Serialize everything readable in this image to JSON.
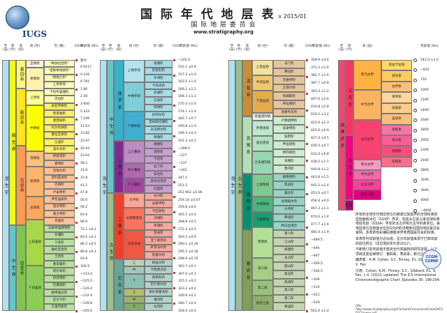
{
  "header": {
    "logo_text": "IUGS",
    "title": "国 际 年 代 地 层 表",
    "version": "v 2015/01",
    "subtitle": "国 际 地 层 委 员 会",
    "url": "www.stratigraphy.org"
  },
  "column_headers": {
    "eonothem": "宇 (宙)",
    "erathem": "界 (代)",
    "system": "系 (纪)",
    "series": "统 (世)",
    "stage": "阶 (期)",
    "gssp": "GSSP",
    "age": "年龄值 (Ma)"
  },
  "panel1": {
    "eon": "显 生 宇",
    "eras": [
      "新 生 界",
      "中 生 界"
    ],
    "systems": [
      "第四系",
      "新近系",
      "古近系",
      "白垩系"
    ],
    "series": [
      "全新统",
      "更新统",
      "上新统",
      "中新统",
      "渐新统",
      "始新统",
      "古新统",
      "上白垩统",
      "下白垩统"
    ],
    "stages": [
      "\"梅加拉亚阶\"",
      "\"诺斯格瑞皮阶\"",
      "\"格陵兰阶\"",
      "上更新统",
      "卡拉布里雅阶",
      "杰拉阶",
      "皮亚琴察阶",
      "赞克勒阶",
      "墨西拿阶",
      "托尔托纳阶",
      "塞拉瓦莱阶",
      "兰盖阶",
      "波尔多阶",
      "阿基坦阶",
      "夏特阶",
      "吕珀尔阶",
      "普利亚本阶",
      "巴顿阶",
      "卢泰特阶",
      "伊普里斯阶",
      "坦尼特阶",
      "塞兰特阶",
      "丹麦阶",
      "马斯特里赫特阶",
      "坎潘阶",
      "三冬阶",
      "康尼亚克阶",
      "土伦阶",
      "塞诺曼阶",
      "阿尔布阶",
      "阿普特阶",
      "巴雷姆阶",
      "欧特里夫阶",
      "瓦兰今阶",
      "贝里阿斯阶"
    ],
    "ages": [
      "现今",
      "0.0117",
      "0.126",
      "0.781",
      "1.80",
      "2.58",
      "3.600",
      "5.333",
      "7.246",
      "11.63",
      "13.82",
      "15.97",
      "20.44",
      "23.03",
      "28.1",
      "33.9",
      "37.8",
      "41.2",
      "47.8",
      "56.0",
      "59.2",
      "61.6",
      "66.0",
      "72.1 ±0.2",
      "83.6 ±0.2",
      "86.3 ±0.5",
      "89.8 ±0.3",
      "93.9",
      "100.5",
      "~113.0",
      "~125.0",
      "~129.4",
      "~132.9",
      "~139.8",
      "~145.0"
    ]
  },
  "panel2": {
    "eon": "显 生 宇",
    "era": "中 生 界",
    "systems": [
      "侏 罗 系",
      "三 叠 系"
    ],
    "era_low": "古 生 界",
    "systems_low": [
      "二 叠 系",
      "石 炭 系"
    ],
    "series": [
      "上侏罗统",
      "中侏罗统",
      "下侏罗统",
      "上三叠统",
      "中三叠统",
      "下三叠统",
      "乐平统",
      "瓜德鲁普统",
      "乌拉尔统",
      "上",
      "中",
      "下",
      "上",
      "中",
      "下"
    ],
    "subsystems": [
      "宾夕法尼亚亚系",
      "密西西比亚系"
    ],
    "stages": [
      "提塘阶",
      "钦莫利阶",
      "牛津阶",
      "卡洛夫阶",
      "巴通阶",
      "巴柔阶",
      "阿林阶",
      "托阿尔阶",
      "普林斯巴赫阶",
      "辛涅缪尔阶",
      "赫塘阶",
      "瑞替阶",
      "诺利阶",
      "卡尼阶",
      "拉丁阶",
      "安尼阶",
      "奥伦尼克阶",
      "印度阶",
      "长兴阶",
      "吴家坪阶",
      "卡匹敦阶",
      "沃德阶",
      "罗德阶",
      "空谷阶",
      "亚丁斯克阶",
      "萨克马尔阶",
      "阿瑟尔阶",
      "格舍尔阶",
      "卡西莫夫阶",
      "莫斯科阶",
      "巴什基尔阶",
      "谢尔普霍夫阶",
      "维宪阶",
      "杜内阶"
    ],
    "ages": [
      "~145.0",
      "152.1 ±0.9",
      "157.3 ±1.0",
      "163.5 ±1.0",
      "166.1 ±1.2",
      "168.3 ±1.3",
      "170.3 ±1.4",
      "174.1 ±1.0",
      "182.7 ±0.7",
      "190.8 ±1.0",
      "199.3 ±0.3",
      "201.3 ±0.2",
      "~208.5",
      "~227",
      "~237",
      "~242",
      "247.2",
      "251.2",
      "251.902 ±0.06",
      "254.14 ±0.07",
      "259.8 ±0.4",
      "265.1 ±0.4",
      "268.8 ±0.5",
      "272.3 ±0.5",
      "283.5 ±0.6",
      "290.1 ±0.26",
      "295.5 ±0.18",
      "298.9 ±0.15",
      "303.7 ±0.1",
      "307.0 ±0.1",
      "315.2 ±0.2",
      "323.2 ±0.4",
      "330.9 ±0.2",
      "346.7 ±0.4",
      "358.9 ±0.4"
    ]
  },
  "panel3": {
    "eon": "显 生 宇",
    "era": "古 生 界",
    "systems": [
      "泥 盆 系",
      "志 留 系",
      "奥 陶 系",
      "寒 武 系"
    ],
    "series": [
      "上泥盆统",
      "中泥盆统",
      "下泥盆统",
      "普里道利统",
      "罗德洛统",
      "温洛克统",
      "兰多维列统",
      "上奥陶统",
      "中奥陶统",
      "下奥陶统",
      "芙蓉统",
      "第三统",
      "第二统",
      "纽芬兰统"
    ],
    "stages": [
      "法门阶",
      "弗拉阶",
      "吉维特阶",
      "艾菲尔阶",
      "埃姆斯阶",
      "布拉格阶",
      "洛赫考夫阶",
      "卢德福特阶",
      "高斯特阶",
      "侯默阶",
      "申伍德阶",
      "特列奇阶",
      "埃隆阶",
      "鲁丹阶",
      "赫南特阶",
      "凯迪阶",
      "桑比阶",
      "达瑞威尔阶",
      "大坪阶",
      "弗洛阶",
      "特马豆克阶",
      "第十阶",
      "江山阶",
      "排碧阶",
      "古丈阶",
      "鼓山阶",
      "第五阶",
      "第四阶",
      "第三阶",
      "第二阶",
      "幸运阶"
    ],
    "ages": [
      "358.9 ±0.4",
      "372.2 ±1.6",
      "382.7 ±1.6",
      "387.7 ±0.8",
      "393.3 ±1.2",
      "407.6 ±2.6",
      "410.8 ±2.8",
      "419.2 ±3.2",
      "423.0 ±2.3",
      "425.6 ±0.9",
      "427.4 ±0.5",
      "430.5 ±0.7",
      "433.4 ±0.8",
      "438.5 ±1.1",
      "440.8 ±1.2",
      "443.8 ±1.5",
      "445.2 ±1.4",
      "453.0 ±0.7",
      "458.4 ±0.9",
      "467.3 ±1.1",
      "470.0 ±1.4",
      "477.7 ±1.4",
      "485.4 ±1.9",
      "~489.5",
      "~494",
      "~497",
      "~500.5",
      "~504.5",
      "~509",
      "~514",
      "~521",
      "~529",
      "541.0 ±1.0"
    ]
  },
  "panel4": {
    "eon_group": "前 寒 武 系",
    "eons": [
      "元 古 宇",
      "太 古 宇"
    ],
    "eras": [
      "新元古界",
      "中元古界",
      "古元古界",
      "新太古界",
      "中太古界",
      "古太古界",
      "始太古界"
    ],
    "systems": [
      "埃迪卡拉系",
      "成冰系",
      "拉伸系",
      "狭带系",
      "延展系",
      "盖层系",
      "固结系",
      "造山系",
      "层侵系",
      "成铁系"
    ],
    "hadean": "冥 古 宇",
    "ages": [
      "541.0 ±1.0",
      "~635",
      "720",
      "1000",
      "1200",
      "1400",
      "1600",
      "1800",
      "2050",
      "2300",
      "2500",
      "2800",
      "3200",
      "3600",
      "4000",
      "~4600"
    ]
  },
  "notes": {
    "p1": "所有的全球年代地层单位均被通过其底界的全球标准层型剖面和点位（GSSP）界定，包括太古宙以来全球标准地层年龄（GSSA）界定的太古宇和元古宇的各单位。各地层单位及剖面点位的GSSP的详细参见国际地层委员会官网。本表的色彩编码遵循世界地质图委员会的标准。",
    "p2": "本表所列年龄值为近似值。显示年龄值来源于已知年龄的层位附近（详见地层年代表2012）。",
    "p3": "不断修订的年龄值不能完全代表最新的研究进展，以下项目还需后续修订：第四系；寒武系；新元古界。",
    "p4": "编表者：K.M. Cohen, S.C. Finney, P.L. Gibbard, J.-X. Fan",
    "p5": "引用：Cohen, K.M., Finney, S.C., Gibbard, P.L. & Fan, J.-X. (2013; updated) The ICS International Chronostratigraphic Chart. Episodes 36: 199-204.",
    "ccgm": "CCGM CGMW",
    "footer": "URL: http://www.stratigraphy.org/ICSchart/ChronostratChart2015-01Chinese.pdf"
  },
  "colors": {
    "quaternary": "#f9f97f",
    "neogene": "#ffe619",
    "paleogene": "#fd9a52",
    "cretaceous": "#7fc64e",
    "jurassic": "#34b2c9",
    "triassic": "#812b92",
    "permian": "#f04028",
    "carboniferous": "#67a599",
    "devonian": "#cb8c37",
    "silurian": "#b3e1b6",
    "ordovician": "#009270",
    "cambrian": "#7fa056",
    "proterozoic": "#f73563",
    "archean": "#f0047f",
    "hadean": "#ae027e"
  }
}
